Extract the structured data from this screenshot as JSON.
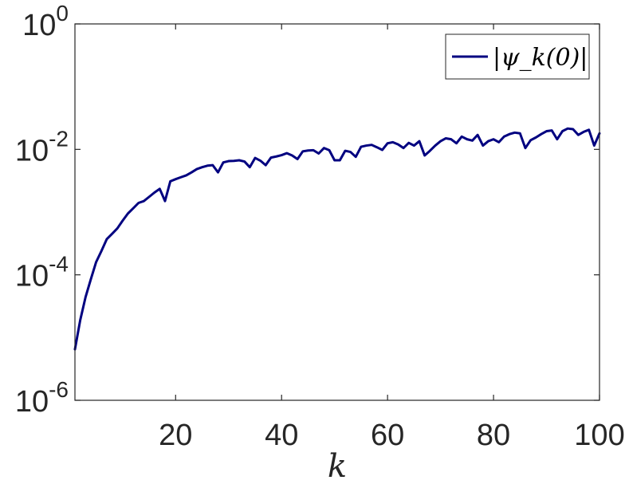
{
  "chart_data": {
    "type": "line",
    "title": "",
    "xlabel": "k",
    "ylabel": "",
    "xlim": [
      1,
      100
    ],
    "ylim": [
      1e-06,
      1
    ],
    "yscale": "log",
    "grid": false,
    "legend_position": "top-right",
    "x_ticks": [
      20,
      40,
      60,
      80,
      100
    ],
    "x_tick_labels": [
      "20",
      "40",
      "60",
      "80",
      "100"
    ],
    "y_ticks": [
      1e-06,
      0.0001,
      0.01,
      1
    ],
    "y_tick_labels": [
      {
        "base": "10",
        "exp": "-6"
      },
      {
        "base": "10",
        "exp": "-4"
      },
      {
        "base": "10",
        "exp": "-2"
      },
      {
        "base": "10",
        "exp": "0"
      }
    ],
    "series": [
      {
        "name": "|ψ_k(0)|",
        "color": "#000080",
        "x": [
          1,
          2,
          3,
          4,
          5,
          6,
          7,
          8,
          9,
          10,
          11,
          12,
          13,
          14,
          15,
          16,
          17,
          18,
          19,
          20,
          21,
          22,
          23,
          24,
          25,
          26,
          27,
          28,
          29,
          30,
          31,
          32,
          33,
          34,
          35,
          36,
          37,
          38,
          39,
          40,
          41,
          42,
          43,
          44,
          45,
          46,
          47,
          48,
          49,
          50,
          51,
          52,
          53,
          54,
          55,
          56,
          57,
          58,
          59,
          60,
          61,
          62,
          63,
          64,
          65,
          66,
          67,
          68,
          69,
          70,
          71,
          72,
          73,
          74,
          75,
          76,
          77,
          78,
          79,
          80,
          81,
          82,
          83,
          84,
          85,
          86,
          87,
          88,
          89,
          90,
          91,
          92,
          93,
          94,
          95,
          96,
          97,
          98,
          99,
          100
        ],
        "values": [
          6.5e-06,
          1.9e-05,
          4.4e-05,
          8.5e-05,
          0.00016,
          0.00024,
          0.00037,
          0.00045,
          0.00055,
          0.00073,
          0.00095,
          0.00115,
          0.0014,
          0.0015,
          0.00175,
          0.00205,
          0.00235,
          0.0015,
          0.0031,
          0.00335,
          0.0036,
          0.00385,
          0.0043,
          0.00485,
          0.0052,
          0.0055,
          0.0056,
          0.0043,
          0.0062,
          0.0065,
          0.00655,
          0.0067,
          0.0064,
          0.0052,
          0.0073,
          0.0066,
          0.0056,
          0.0074,
          0.0077,
          0.0081,
          0.0087,
          0.008,
          0.007,
          0.0093,
          0.0096,
          0.0097,
          0.0086,
          0.0105,
          0.0097,
          0.0067,
          0.0067,
          0.0095,
          0.0091,
          0.0076,
          0.011,
          0.0115,
          0.0118,
          0.0108,
          0.0098,
          0.0125,
          0.013,
          0.012,
          0.0105,
          0.0127,
          0.0115,
          0.0135,
          0.008,
          0.0095,
          0.0115,
          0.0135,
          0.015,
          0.0145,
          0.0125,
          0.016,
          0.0145,
          0.0138,
          0.017,
          0.0115,
          0.0135,
          0.0145,
          0.013,
          0.016,
          0.0175,
          0.0185,
          0.018,
          0.0105,
          0.014,
          0.0155,
          0.0175,
          0.0195,
          0.02,
          0.0145,
          0.0195,
          0.0215,
          0.021,
          0.017,
          0.019,
          0.0205,
          0.0115,
          0.018
        ]
      }
    ]
  }
}
